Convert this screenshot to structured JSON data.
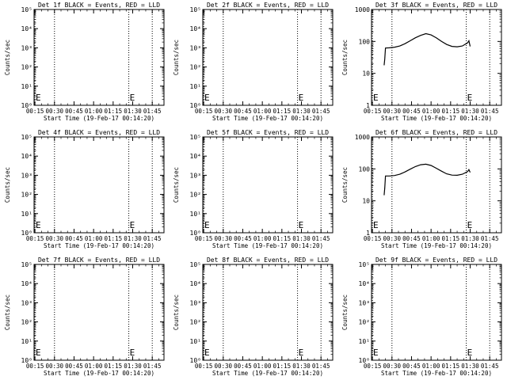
{
  "colors": {
    "events": "#000000",
    "lld": "#ff0000",
    "background": "#ffffff"
  },
  "chart_data": [
    {
      "type": "line",
      "title": "Det 1f BLACK = Events, RED = LLD",
      "xlabel": "Start Time (19-Feb-17 00:14:20)",
      "ylabel": "Counts/sec",
      "x_ticks": [
        "00:15",
        "00:30",
        "00:45",
        "01:00",
        "01:15",
        "01:30",
        "01:45"
      ],
      "x_tick_minutes": [
        15,
        30,
        45,
        60,
        75,
        90,
        105
      ],
      "xlim": [
        14.33,
        114
      ],
      "y_scale": "log",
      "ylim": [
        1,
        100000
      ],
      "y_tick_labels": [
        "10⁰",
        "10¹",
        "10²",
        "10³",
        "10⁴",
        "10⁵"
      ],
      "vlines_minutes": [
        15,
        30,
        87,
        105
      ],
      "series": []
    },
    {
      "type": "line",
      "title": "Det 2f BLACK = Events, RED = LLD",
      "xlabel": "Start Time (19-Feb-17 00:14:20)",
      "ylabel": "Counts/sec",
      "x_ticks": [
        "00:15",
        "00:30",
        "00:45",
        "01:00",
        "01:15",
        "01:30",
        "01:45"
      ],
      "x_tick_minutes": [
        15,
        30,
        45,
        60,
        75,
        90,
        105
      ],
      "xlim": [
        14.33,
        114
      ],
      "y_scale": "log",
      "ylim": [
        1,
        100000
      ],
      "y_tick_labels": [
        "10⁰",
        "10¹",
        "10²",
        "10³",
        "10⁴",
        "10⁵"
      ],
      "vlines_minutes": [
        15,
        30,
        87,
        105
      ],
      "series": []
    },
    {
      "type": "line",
      "title": "Det 3f BLACK = Events, RED = LLD",
      "xlabel": "Start Time (19-Feb-17 00:14:20)",
      "ylabel": "Counts/sec",
      "x_ticks": [
        "00:15",
        "00:30",
        "00:45",
        "01:00",
        "01:15",
        "01:30",
        "01:45"
      ],
      "x_tick_minutes": [
        15,
        30,
        45,
        60,
        75,
        90,
        105
      ],
      "xlim": [
        14.33,
        114
      ],
      "y_scale": "log",
      "ylim": [
        1,
        1000
      ],
      "y_tick_labels": [
        "1",
        "10",
        "100",
        "1000"
      ],
      "vlines_minutes": [
        15,
        30,
        87,
        105
      ],
      "series": [
        {
          "x": [
            24,
            24.5,
            25,
            28,
            32,
            36,
            40,
            44,
            48,
            52,
            56,
            60,
            64,
            68,
            72,
            76,
            80,
            84,
            88,
            89,
            90
          ],
          "y": [
            18,
            28,
            62,
            63,
            66,
            72,
            85,
            105,
            130,
            155,
            175,
            160,
            130,
            100,
            80,
            70,
            68,
            72,
            90,
            105,
            70
          ]
        }
      ]
    },
    {
      "type": "line",
      "title": "Det 4f BLACK = Events, RED = LLD",
      "xlabel": "Start Time (19-Feb-17 00:14:20)",
      "ylabel": "Counts/sec",
      "x_ticks": [
        "00:15",
        "00:30",
        "00:45",
        "01:00",
        "01:15",
        "01:30",
        "01:45"
      ],
      "x_tick_minutes": [
        15,
        30,
        45,
        60,
        75,
        90,
        105
      ],
      "xlim": [
        14.33,
        114
      ],
      "y_scale": "log",
      "ylim": [
        1,
        100000
      ],
      "y_tick_labels": [
        "10⁰",
        "10¹",
        "10²",
        "10³",
        "10⁴",
        "10⁵"
      ],
      "vlines_minutes": [
        15,
        30,
        87,
        105
      ],
      "series": []
    },
    {
      "type": "line",
      "title": "Det 5f BLACK = Events, RED = LLD",
      "xlabel": "Start Time (19-Feb-17 00:14:20)",
      "ylabel": "Counts/sec",
      "x_ticks": [
        "00:15",
        "00:30",
        "00:45",
        "01:00",
        "01:15",
        "01:30",
        "01:45"
      ],
      "x_tick_minutes": [
        15,
        30,
        45,
        60,
        75,
        90,
        105
      ],
      "xlim": [
        14.33,
        114
      ],
      "y_scale": "log",
      "ylim": [
        1,
        100000
      ],
      "y_tick_labels": [
        "10⁰",
        "10¹",
        "10²",
        "10³",
        "10⁴",
        "10⁵"
      ],
      "vlines_minutes": [
        15,
        30,
        87,
        105
      ],
      "series": []
    },
    {
      "type": "line",
      "title": "Det 6f BLACK = Events, RED = LLD",
      "xlabel": "Start Time (19-Feb-17 00:14:20)",
      "ylabel": "Counts/sec",
      "x_ticks": [
        "00:15",
        "00:30",
        "00:45",
        "01:00",
        "01:15",
        "01:30",
        "01:45"
      ],
      "x_tick_minutes": [
        15,
        30,
        45,
        60,
        75,
        90,
        105
      ],
      "xlim": [
        14.33,
        114
      ],
      "y_scale": "log",
      "ylim": [
        1,
        1000
      ],
      "y_tick_labels": [
        "1",
        "10",
        "100",
        "1000"
      ],
      "vlines_minutes": [
        15,
        30,
        87,
        105
      ],
      "series": [
        {
          "x": [
            24,
            24.5,
            25,
            28,
            32,
            36,
            40,
            44,
            48,
            52,
            56,
            60,
            64,
            68,
            72,
            76,
            80,
            84,
            88,
            89,
            90
          ],
          "y": [
            15,
            25,
            60,
            60,
            62,
            68,
            80,
            98,
            118,
            135,
            140,
            128,
            105,
            85,
            70,
            64,
            63,
            68,
            82,
            95,
            78
          ]
        }
      ]
    },
    {
      "type": "line",
      "title": "Det 7f BLACK = Events, RED = LLD",
      "xlabel": "Start Time (19-Feb-17 00:14:20)",
      "ylabel": "Counts/sec",
      "x_ticks": [
        "00:15",
        "00:30",
        "00:45",
        "01:00",
        "01:15",
        "01:30",
        "01:45"
      ],
      "x_tick_minutes": [
        15,
        30,
        45,
        60,
        75,
        90,
        105
      ],
      "xlim": [
        14.33,
        114
      ],
      "y_scale": "log",
      "ylim": [
        1,
        100000
      ],
      "y_tick_labels": [
        "10⁰",
        "10¹",
        "10²",
        "10³",
        "10⁴",
        "10⁵"
      ],
      "vlines_minutes": [
        15,
        30,
        87,
        105
      ],
      "series": []
    },
    {
      "type": "line",
      "title": "Det 8f BLACK = Events, RED = LLD",
      "xlabel": "Start Time (19-Feb-17 00:14:20)",
      "ylabel": "Counts/sec",
      "x_ticks": [
        "00:15",
        "00:30",
        "00:45",
        "01:00",
        "01:15",
        "01:30",
        "01:45"
      ],
      "x_tick_minutes": [
        15,
        30,
        45,
        60,
        75,
        90,
        105
      ],
      "xlim": [
        14.33,
        114
      ],
      "y_scale": "log",
      "ylim": [
        1,
        100000
      ],
      "y_tick_labels": [
        "10⁰",
        "10¹",
        "10²",
        "10³",
        "10⁴",
        "10⁵"
      ],
      "vlines_minutes": [
        15,
        30,
        87,
        105
      ],
      "series": []
    },
    {
      "type": "line",
      "title": "Det 9f BLACK = Events, RED = LLD",
      "xlabel": "Start Time (19-Feb-17 00:14:20)",
      "ylabel": "Counts/sec",
      "x_ticks": [
        "00:15",
        "00:30",
        "00:45",
        "01:00",
        "01:15",
        "01:30",
        "01:45"
      ],
      "x_tick_minutes": [
        15,
        30,
        45,
        60,
        75,
        90,
        105
      ],
      "xlim": [
        14.33,
        114
      ],
      "y_scale": "log",
      "ylim": [
        1,
        100000
      ],
      "y_tick_labels": [
        "10⁰",
        "10¹",
        "10²",
        "10³",
        "10⁴",
        "10⁵"
      ],
      "vlines_minutes": [
        15,
        30,
        87,
        105
      ],
      "series": []
    }
  ]
}
